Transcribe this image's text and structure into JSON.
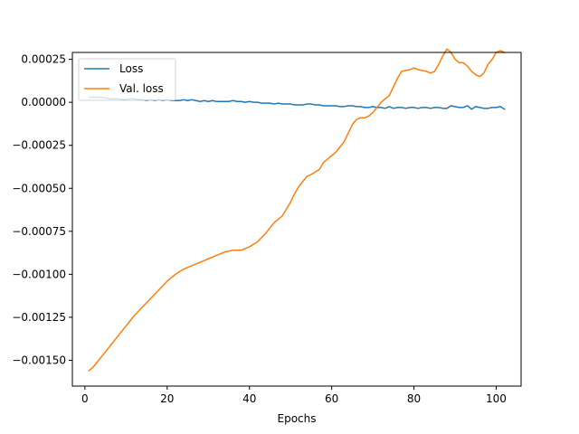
{
  "chart_data": {
    "type": "line",
    "title": "",
    "xlabel": "Epochs",
    "ylabel": "",
    "xlim": [
      -3.05,
      106.05
    ],
    "ylim": [
      -0.00165,
      0.00029
    ],
    "x_ticks": [
      0,
      20,
      40,
      60,
      80,
      100
    ],
    "x_tick_labels": [
      "0",
      "20",
      "40",
      "60",
      "80",
      "100"
    ],
    "y_ticks": [
      0.00025,
      0.0,
      -0.00025,
      -0.0005,
      -0.00075,
      -0.001,
      -0.00125,
      -0.0015
    ],
    "y_tick_labels": [
      "0.00025",
      "0.00000",
      "−0.00025",
      "−0.00050",
      "−0.00075",
      "−0.00100",
      "−0.00125",
      "−0.00150"
    ],
    "grid": false,
    "legend": {
      "position": "upper-left"
    },
    "series": [
      {
        "name": "Loss",
        "color": "#1f77b4",
        "x": [
          1,
          2,
          3,
          4,
          5,
          6,
          7,
          8,
          9,
          10,
          11,
          12,
          13,
          14,
          15,
          16,
          17,
          18,
          19,
          20,
          21,
          22,
          23,
          24,
          25,
          26,
          27,
          28,
          29,
          30,
          31,
          32,
          33,
          34,
          35,
          36,
          37,
          38,
          39,
          40,
          41,
          42,
          43,
          44,
          45,
          46,
          47,
          48,
          49,
          50,
          51,
          52,
          53,
          54,
          55,
          56,
          57,
          58,
          59,
          60,
          61,
          62,
          63,
          64,
          65,
          66,
          67,
          68,
          69,
          70,
          71,
          72,
          73,
          74,
          75,
          76,
          77,
          78,
          79,
          80,
          81,
          82,
          83,
          84,
          85,
          86,
          87,
          88,
          89,
          90,
          91,
          92,
          93,
          94,
          95,
          96,
          97,
          98,
          99,
          100,
          101,
          102
        ],
        "y": [
          3e-05,
          3e-05,
          3e-05,
          3e-05,
          2.5e-05,
          2e-05,
          2e-05,
          2e-05,
          1.5e-05,
          1.5e-05,
          2e-05,
          2e-05,
          1.5e-05,
          1.5e-05,
          1e-05,
          1.5e-05,
          1e-05,
          1.5e-05,
          1e-05,
          1.5e-05,
          1e-05,
          1e-05,
          1e-05,
          1.5e-05,
          1e-05,
          1.5e-05,
          1e-05,
          5e-06,
          1e-05,
          5e-06,
          1e-05,
          5e-06,
          5e-06,
          5e-06,
          5e-06,
          1e-05,
          5e-06,
          5e-06,
          0.0,
          5e-06,
          0.0,
          0.0,
          -5e-06,
          -5e-06,
          -5e-06,
          -1e-05,
          -5e-06,
          -1e-05,
          -1e-05,
          -1e-05,
          -1.5e-05,
          -1.5e-05,
          -1.5e-05,
          -1e-05,
          -1e-05,
          -1.5e-05,
          -1.5e-05,
          -2e-05,
          -2e-05,
          -2e-05,
          -2e-05,
          -2.5e-05,
          -2.5e-05,
          -2e-05,
          -2e-05,
          -2.5e-05,
          -2.5e-05,
          -3e-05,
          -3e-05,
          -2.5e-05,
          -3e-05,
          -3e-05,
          -3.5e-05,
          -2.5e-05,
          -3.5e-05,
          -3e-05,
          -3e-05,
          -3.5e-05,
          -3e-05,
          -3e-05,
          -3.5e-05,
          -3e-05,
          -3e-05,
          -3.5e-05,
          -3e-05,
          -3e-05,
          -3.5e-05,
          -3.5e-05,
          -2e-05,
          -2.5e-05,
          -3e-05,
          -3e-05,
          -2e-05,
          -4e-05,
          -2.5e-05,
          -3e-05,
          -3.5e-05,
          -3.5e-05,
          -3e-05,
          -3e-05,
          -2.5e-05,
          -4e-05
        ]
      },
      {
        "name": "Val. loss",
        "color": "#ff7f0e",
        "x": [
          1,
          2,
          3,
          4,
          5,
          6,
          8,
          10,
          12,
          14,
          16,
          18,
          20,
          22,
          24,
          26,
          28,
          30,
          32,
          34,
          36,
          38,
          40,
          42,
          44,
          46,
          48,
          50,
          51,
          52,
          53,
          54,
          55,
          57,
          58,
          59,
          60,
          61,
          62,
          63,
          64,
          65,
          66,
          67,
          68,
          69,
          70,
          71,
          72,
          73,
          74,
          75,
          76,
          77,
          78,
          79,
          80,
          81,
          82,
          83,
          84,
          85,
          86,
          87,
          88,
          89,
          90,
          91,
          92,
          93,
          94,
          95,
          96,
          97,
          98,
          99,
          100,
          101,
          102
        ],
        "y": [
          -0.00156,
          -0.00154,
          -0.00151,
          -0.00148,
          -0.00145,
          -0.00142,
          -0.00136,
          -0.0013,
          -0.00124,
          -0.00119,
          -0.00114,
          -0.00109,
          -0.00104,
          -0.001,
          -0.00097,
          -0.00095,
          -0.00093,
          -0.00091,
          -0.00089,
          -0.00087,
          -0.00086,
          -0.00086,
          -0.00084,
          -0.00081,
          -0.00076,
          -0.0007,
          -0.00066,
          -0.00058,
          -0.00053,
          -0.00049,
          -0.00046,
          -0.00043,
          -0.00042,
          -0.00039,
          -0.00035,
          -0.00033,
          -0.00031,
          -0.00029,
          -0.00026,
          -0.00023,
          -0.00018,
          -0.00013,
          -0.0001,
          -9e-05,
          -9e-05,
          -8e-05,
          -6e-05,
          -3e-05,
          0.0,
          2e-05,
          4e-05,
          9e-05,
          0.00014,
          0.00018,
          0.000185,
          0.00019,
          0.0002,
          0.00019,
          0.000185,
          0.00018,
          0.00017,
          0.00018,
          0.00022,
          0.00027,
          0.00031,
          0.00029,
          0.00025,
          0.00023,
          0.00023,
          0.00021,
          0.00018,
          0.00016,
          0.00015,
          0.00017,
          0.00022,
          0.00025,
          0.00029,
          0.0003,
          0.00029
        ]
      }
    ]
  }
}
